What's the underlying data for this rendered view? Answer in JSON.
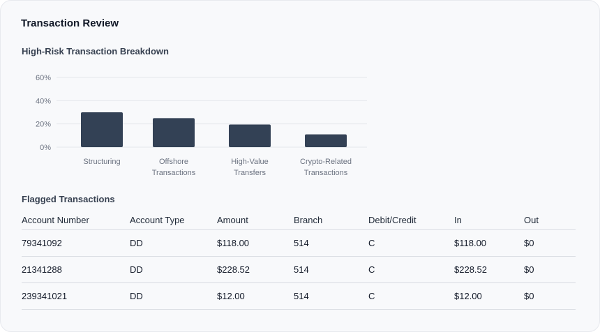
{
  "page": {
    "title": "Transaction Review"
  },
  "chart_section": {
    "title": "High-Risk Transaction Breakdown"
  },
  "chart_data": {
    "type": "bar",
    "categories": [
      [
        "Structuring"
      ],
      [
        "Offshore",
        "Transactions"
      ],
      [
        "High-Value",
        "Transfers"
      ],
      [
        "Crypto-Related",
        "Transactions"
      ]
    ],
    "values": [
      30,
      25,
      19.5,
      11
    ],
    "yticks": [
      "0%",
      "20%",
      "40%",
      "60%"
    ],
    "ytick_values": [
      0,
      20,
      40,
      60
    ],
    "ylim": [
      0,
      60
    ],
    "grid": true,
    "bar_color": "#334155"
  },
  "table_section": {
    "title": "Flagged Transactions",
    "columns": [
      "Account Number",
      "Account Type",
      "Amount",
      "Branch",
      "Debit/Credit",
      "In",
      "Out"
    ],
    "rows": [
      [
        "79341092",
        "DD",
        "$118.00",
        "514",
        "C",
        "$118.00",
        "$0"
      ],
      [
        "21341288",
        "DD",
        "$228.52",
        "514",
        "C",
        "$228.52",
        "$0"
      ],
      [
        "239341021",
        "DD",
        "$12.00",
        "514",
        "C",
        "$12.00",
        "$0"
      ]
    ]
  }
}
